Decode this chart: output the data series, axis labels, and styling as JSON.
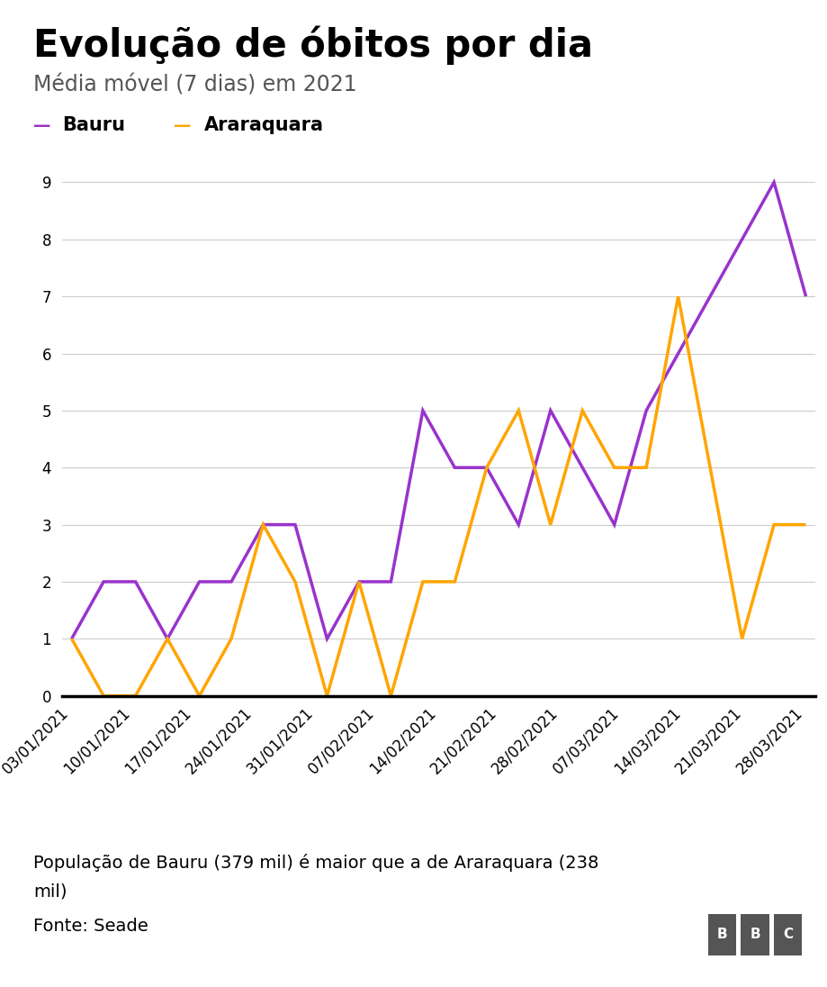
{
  "title": "Evolução de óbitos por dia",
  "subtitle": "Média móvel (7 dias) em 2021",
  "note_line1": "População de Bauru (379 mil) é maior que a de Araraquara (238",
  "note_line2": "mil)",
  "source": "Fonte: Seade",
  "bauru_color": "#9933CC",
  "araraquara_color": "#FFA500",
  "bauru_label": "Bauru",
  "araraquara_label": "Araraquara",
  "x_labels": [
    "03/01/2021",
    "10/01/2021",
    "17/01/2021",
    "24/01/2021",
    "31/01/2021",
    "07/02/2021",
    "14/02/2021",
    "21/02/2021",
    "28/02/2021",
    "07/03/2021",
    "14/03/2021",
    "21/03/2021",
    "28/03/2021"
  ],
  "bauru": [
    1,
    2,
    2,
    1,
    2,
    2,
    3,
    3,
    1,
    2,
    2,
    5,
    4,
    4,
    3,
    5,
    4,
    3,
    5,
    6,
    7,
    8,
    9,
    7
  ],
  "araraquara": [
    1,
    0,
    0,
    1,
    0,
    1,
    3,
    2,
    0,
    2,
    0,
    2,
    2,
    4,
    5,
    3,
    5,
    4,
    4,
    7,
    4,
    1,
    3,
    3
  ],
  "ylim_max": 9.6,
  "yticks": [
    0,
    1,
    2,
    3,
    4,
    5,
    6,
    7,
    8,
    9
  ],
  "bg": "#ffffff",
  "title_fontsize": 30,
  "subtitle_fontsize": 17,
  "note_fontsize": 14,
  "source_fontsize": 14,
  "tick_fontsize": 12,
  "legend_fontsize": 15,
  "line_width": 2.5
}
